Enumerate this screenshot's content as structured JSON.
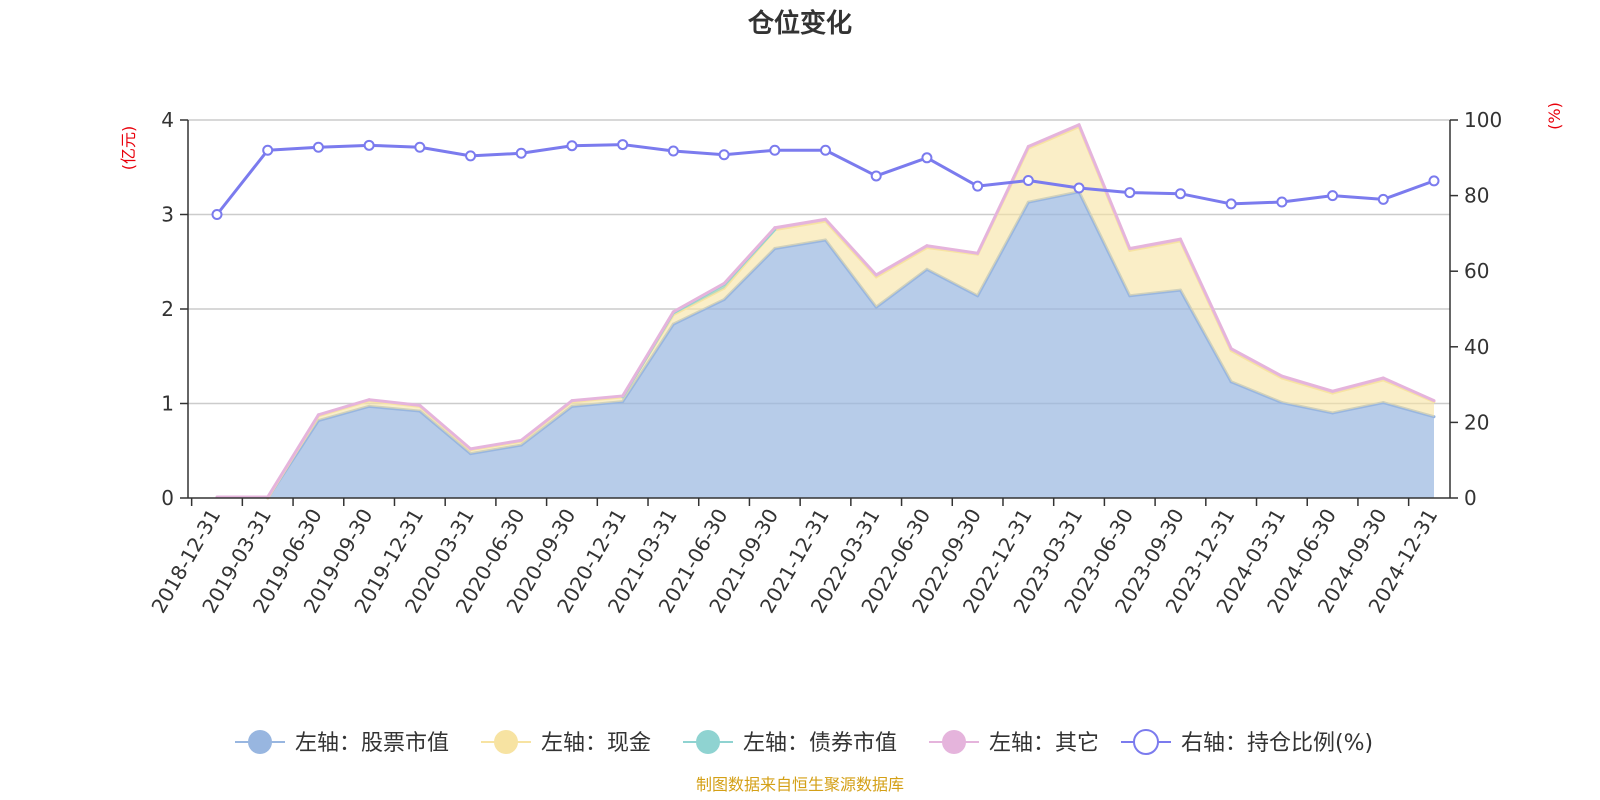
{
  "chart_data": {
    "type": "area+line",
    "title": "仓位变化",
    "left_axis_unit": "(亿元)",
    "right_axis_unit": "(%)",
    "left_ylim": [
      0,
      4
    ],
    "left_ticks": [
      "0",
      "1",
      "2",
      "3",
      "4"
    ],
    "right_ylim": [
      0,
      100
    ],
    "right_ticks": [
      "0",
      "20",
      "40",
      "60",
      "80",
      "100"
    ],
    "categories": [
      "2018-12-31",
      "2019-03-31",
      "2019-06-30",
      "2019-09-30",
      "2019-12-31",
      "2020-03-31",
      "2020-06-30",
      "2020-09-30",
      "2020-12-31",
      "2021-03-31",
      "2021-06-30",
      "2021-09-30",
      "2021-12-31",
      "2022-03-31",
      "2022-06-30",
      "2022-09-30",
      "2022-12-31",
      "2023-03-31",
      "2023-06-30",
      "2023-09-30",
      "2023-12-31",
      "2024-03-31",
      "2024-06-30",
      "2024-09-30",
      "2024-12-31"
    ],
    "series": [
      {
        "name": "左轴：股票市值",
        "axis": "left",
        "kind": "area",
        "color": "#98b6e0",
        "values": [
          0,
          0,
          0.82,
          0.97,
          0.92,
          0.47,
          0.56,
          0.97,
          1.02,
          1.84,
          2.1,
          2.64,
          2.73,
          2.02,
          2.42,
          2.14,
          3.13,
          3.24,
          2.14,
          2.2,
          1.23,
          1.01,
          0.9,
          1.01,
          0.86
        ]
      },
      {
        "name": "左轴：现金",
        "axis": "left",
        "kind": "area",
        "color": "#f7e3a2",
        "values": [
          0,
          0,
          0.05,
          0.06,
          0.05,
          0.04,
          0.04,
          0.05,
          0.05,
          0.1,
          0.12,
          0.2,
          0.2,
          0.32,
          0.23,
          0.44,
          0.57,
          0.69,
          0.48,
          0.52,
          0.33,
          0.26,
          0.21,
          0.24,
          0.16
        ]
      },
      {
        "name": "左轴：债券市值",
        "axis": "left",
        "kind": "area",
        "color": "#8fd3d1",
        "values": [
          0,
          0,
          0,
          0,
          0,
          0,
          0,
          0,
          0,
          0.02,
          0.04,
          0,
          0,
          0,
          0,
          0,
          0,
          0,
          0,
          0,
          0,
          0,
          0,
          0,
          0
        ]
      },
      {
        "name": "左轴：其它",
        "axis": "left",
        "kind": "area",
        "color": "#e5b4dc",
        "values": [
          0.01,
          0.01,
          0.01,
          0.01,
          0.01,
          0.01,
          0.01,
          0.01,
          0.01,
          0.01,
          0.01,
          0.02,
          0.02,
          0.02,
          0.02,
          0.01,
          0.02,
          0.02,
          0.02,
          0.02,
          0.02,
          0.02,
          0.02,
          0.02,
          0.01
        ]
      },
      {
        "name": "右轴：持仓比例(%)",
        "axis": "right",
        "kind": "line",
        "color": "#7b7bee",
        "values": [
          75,
          92,
          92.8,
          93.3,
          92.8,
          90.5,
          91.2,
          93.2,
          93.5,
          91.8,
          90.8,
          92.0,
          92.0,
          85.2,
          90.0,
          82.5,
          84.0,
          82.0,
          80.8,
          80.5,
          77.8,
          78.3,
          80.0,
          79.0,
          83.9
        ]
      }
    ]
  },
  "source": "制图数据来自恒生聚源数据库"
}
